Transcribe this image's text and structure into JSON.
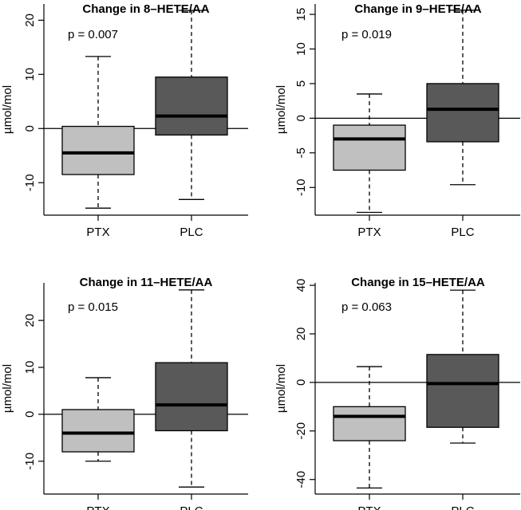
{
  "colors": {
    "PTX": "#c0c0c0",
    "PLC": "#595959",
    "stroke": "#000000"
  },
  "chart_data": [
    {
      "type": "boxplot",
      "title": "Change in 8–HETE/AA",
      "ylabel": "µmol/mol",
      "annotation": "p = 0.007",
      "ylim": [
        -16,
        23
      ],
      "yticks": [
        -10,
        0,
        10,
        20
      ],
      "reference_line": 0,
      "categories": [
        "PTX",
        "PLC"
      ],
      "boxes": [
        {
          "name": "PTX",
          "whisker_low": -14.7,
          "q1": -8.5,
          "median": -4.5,
          "q3": 0.4,
          "whisker_high": 13.3
        },
        {
          "name": "PLC",
          "whisker_low": -13.1,
          "q1": -1.2,
          "median": 2.3,
          "q3": 9.5,
          "whisker_high": 21.8
        }
      ]
    },
    {
      "type": "boxplot",
      "title": "Change in 9–HETE/AA",
      "ylabel": "µmol/mol",
      "annotation": "p = 0.019",
      "ylim": [
        -14,
        16.5
      ],
      "yticks": [
        -10,
        -5,
        0,
        5,
        10,
        15
      ],
      "reference_line": 0,
      "categories": [
        "PTX",
        "PLC"
      ],
      "boxes": [
        {
          "name": "PTX",
          "whisker_low": -13.6,
          "q1": -7.5,
          "median": -3.0,
          "q3": -1.0,
          "whisker_high": 3.5
        },
        {
          "name": "PLC",
          "whisker_low": -9.6,
          "q1": -3.4,
          "median": 1.3,
          "q3": 5.0,
          "whisker_high": 15.6
        }
      ]
    },
    {
      "type": "boxplot",
      "title": "Change in 11–HETE/AA",
      "ylabel": "µmol/mol",
      "annotation": "p = 0.015",
      "ylim": [
        -17,
        28
      ],
      "yticks": [
        -10,
        0,
        10,
        20
      ],
      "reference_line": 0,
      "categories": [
        "PTX",
        "PLC"
      ],
      "boxes": [
        {
          "name": "PTX",
          "whisker_low": -10.0,
          "q1": -8.0,
          "median": -4.0,
          "q3": 1.0,
          "whisker_high": 7.8
        },
        {
          "name": "PLC",
          "whisker_low": -15.5,
          "q1": -3.5,
          "median": 2.0,
          "q3": 11.0,
          "whisker_high": 26.5
        }
      ]
    },
    {
      "type": "boxplot",
      "title": "Change in 15–HETE/AA",
      "ylabel": "µmol/mol",
      "annotation": "p = 0.063",
      "ylim": [
        -46,
        41
      ],
      "yticks": [
        -40,
        -20,
        0,
        20,
        40
      ],
      "reference_line": 0,
      "categories": [
        "PTX",
        "PLC"
      ],
      "boxes": [
        {
          "name": "PTX",
          "whisker_low": -43.5,
          "q1": -24.0,
          "median": -14.0,
          "q3": -10.0,
          "whisker_high": 6.5
        },
        {
          "name": "PLC",
          "whisker_low": -25.0,
          "q1": -18.5,
          "median": -0.5,
          "q3": 11.5,
          "whisker_high": 38.0
        }
      ]
    }
  ]
}
